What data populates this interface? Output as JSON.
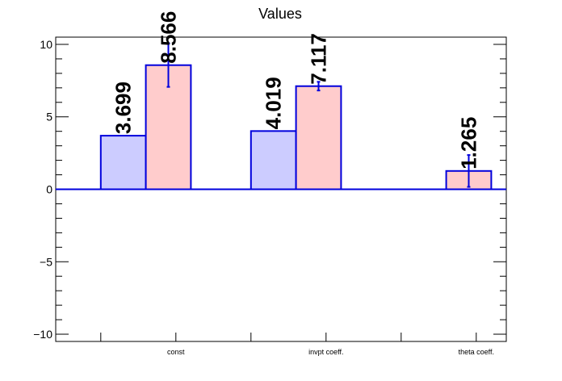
{
  "chart_data": {
    "type": "bar",
    "title": "Values",
    "xlabel": "",
    "ylabel": "",
    "ylim": [
      -10.5,
      10.5
    ],
    "yticks": [
      {
        "value": 10,
        "label": "10"
      },
      {
        "value": 5,
        "label": "5"
      },
      {
        "value": 0,
        "label": "0"
      },
      {
        "value": -5,
        "label": "−5"
      },
      {
        "value": -10,
        "label": "−10"
      }
    ],
    "categories": [
      "const",
      "invpt coeff.",
      "theta coeff."
    ],
    "series": [
      {
        "values": [
          3.699,
          4.019,
          null
        ],
        "errors": [
          null,
          null,
          null
        ],
        "labels": [
          "3.699",
          "4.019",
          ""
        ],
        "fill": "#ccccff",
        "stroke": "#0000dd"
      },
      {
        "values": [
          8.566,
          7.117,
          1.265
        ],
        "errors": [
          1.5,
          0.3,
          1.1
        ],
        "labels": [
          "8.566",
          "7.117",
          "1.265"
        ],
        "fill": "#ffcccc",
        "stroke": "#0000dd"
      }
    ],
    "grid": false,
    "legend": "none"
  }
}
